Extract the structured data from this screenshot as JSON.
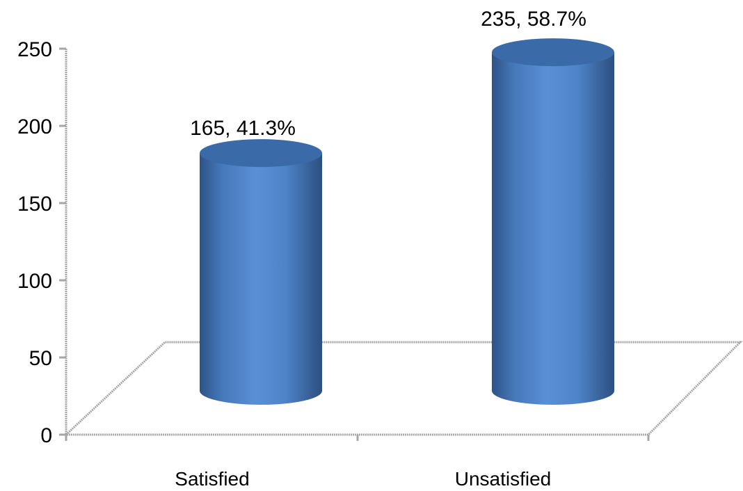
{
  "chart_data": {
    "type": "bar",
    "style": "3d-cylinder",
    "categories": [
      "Satisfied",
      "Unsatisfied"
    ],
    "values": [
      165,
      235
    ],
    "data_labels": [
      "165, 41.3%",
      "235, 58.7%"
    ],
    "ylim": [
      0,
      250
    ],
    "yticks": [
      0,
      50,
      100,
      150,
      200,
      250
    ],
    "ytick_labels": [
      "0",
      "50",
      "100",
      "150",
      "200",
      "250"
    ],
    "title": "",
    "xlabel": "",
    "ylabel": "",
    "grid": false,
    "legend": "none",
    "colors": {
      "bar_light": "#5a8fd6",
      "bar_mid": "#4a7ec4",
      "bar_dark": "#2e5486",
      "bar_top": "#3b6aa8",
      "axis": "#a6a6a6"
    }
  }
}
